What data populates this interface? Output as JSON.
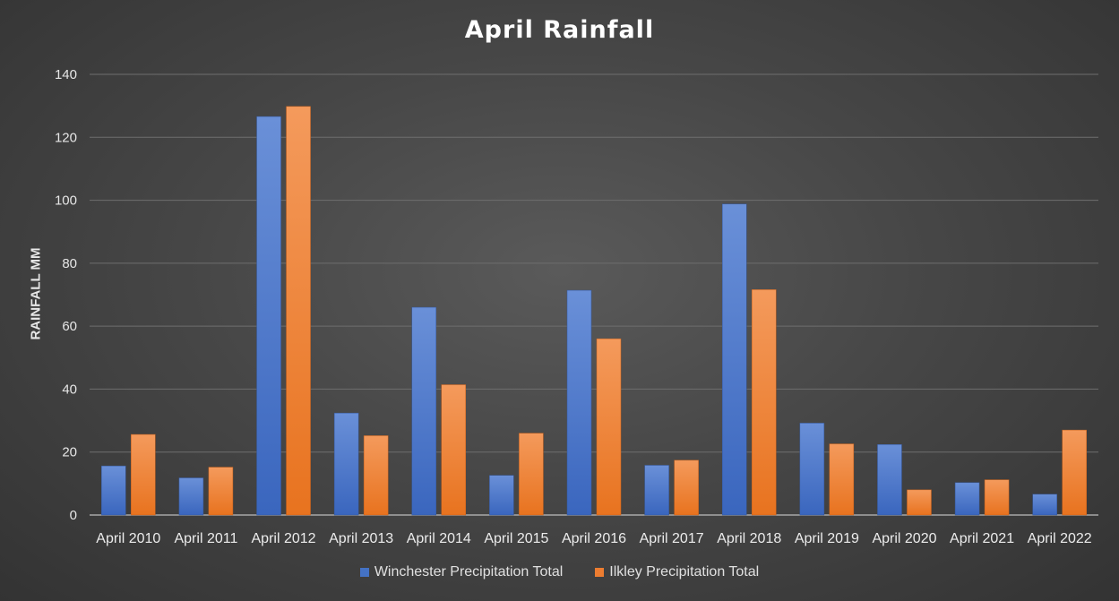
{
  "chart_data": {
    "type": "bar",
    "title": "April Rainfall",
    "xlabel": "",
    "ylabel": "RAINFALL MM",
    "ylim": [
      0,
      140
    ],
    "yticks": [
      0,
      20,
      40,
      60,
      80,
      100,
      120,
      140
    ],
    "grid": true,
    "legend_position": "bottom",
    "categories": [
      "April 2010",
      "April 2011",
      "April 2012",
      "April 2013",
      "April 2014",
      "April 2015",
      "April 2016",
      "April 2017",
      "April 2018",
      "April 2019",
      "April 2020",
      "April 2021",
      "April 2022"
    ],
    "series": [
      {
        "name": "Winchester Precipitation Total",
        "color": "#4472C4",
        "values": [
          15.6,
          11.8,
          126.6,
          32.4,
          66.0,
          12.6,
          71.4,
          15.8,
          98.8,
          29.2,
          22.4,
          10.3,
          6.6
        ]
      },
      {
        "name": "Ilkley Precipitation Total",
        "color": "#ED7D31",
        "values": [
          25.6,
          15.2,
          129.8,
          25.2,
          41.4,
          26.0,
          56.0,
          17.4,
          71.6,
          22.6,
          8.0,
          11.2,
          27.0
        ]
      }
    ]
  }
}
